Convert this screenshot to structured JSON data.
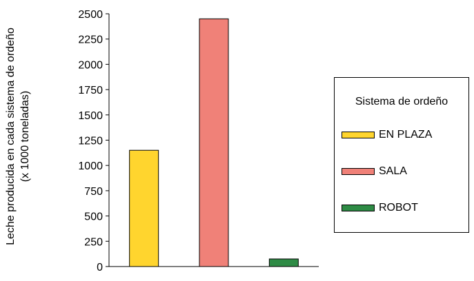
{
  "chart_data": {
    "type": "bar",
    "categories": [
      "EN PLAZA",
      "SALA",
      "ROBOT"
    ],
    "values": [
      1150,
      2450,
      75
    ],
    "colors": [
      "#FFD52E",
      "#F08178",
      "#2E8B45"
    ],
    "ylabel_line1": "Leche producida en cada sistema de ordeño",
    "ylabel_line2": "(x 1000 toneladas)",
    "ylim": [
      0,
      2500
    ],
    "yticks": [
      0,
      250,
      500,
      750,
      1000,
      1250,
      1500,
      1750,
      2000,
      2250,
      2500
    ],
    "grid": false,
    "legend_placement": "right",
    "legend_title": "Sistema de ordeño"
  }
}
